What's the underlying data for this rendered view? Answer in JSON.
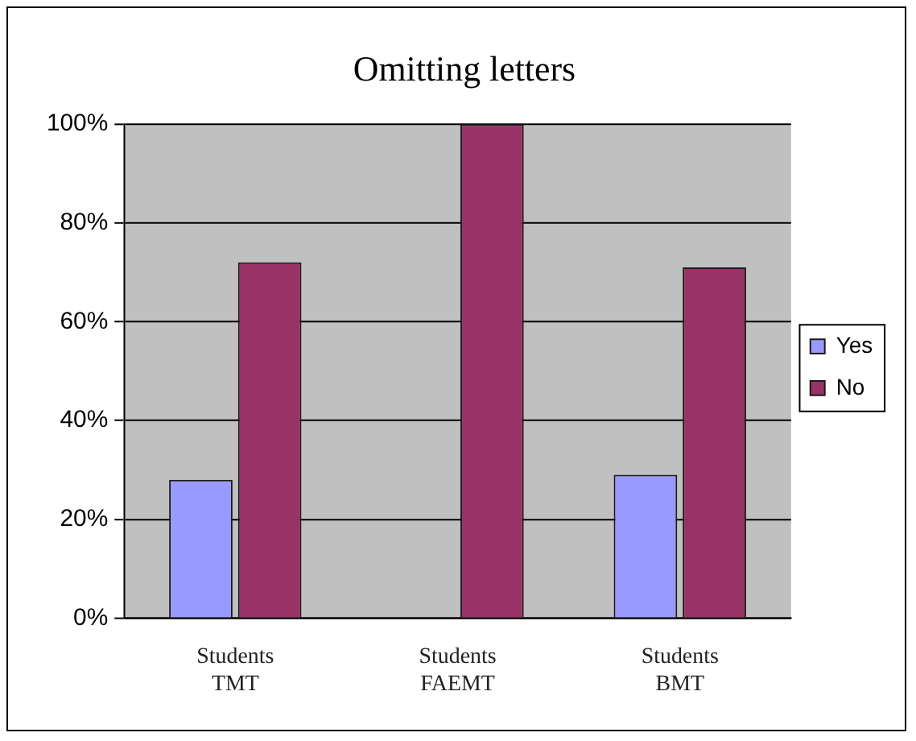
{
  "chart_data": {
    "type": "bar",
    "title": "Omitting letters",
    "categories": [
      "Students TMT",
      "Students FAEMT",
      "Students BMT"
    ],
    "series": [
      {
        "name": "Yes",
        "color": "#9999ff",
        "values": [
          28,
          0,
          29
        ]
      },
      {
        "name": "No",
        "color": "#993366",
        "values": [
          72,
          100,
          71
        ]
      }
    ],
    "ylim": [
      0,
      100
    ],
    "yticks": [
      {
        "value": 0,
        "label": "0%"
      },
      {
        "value": 20,
        "label": "20%"
      },
      {
        "value": 40,
        "label": "40%"
      },
      {
        "value": 60,
        "label": "60%"
      },
      {
        "value": 80,
        "label": "80%"
      },
      {
        "value": 100,
        "label": "100%"
      }
    ],
    "grid": "y",
    "legend": "right"
  }
}
